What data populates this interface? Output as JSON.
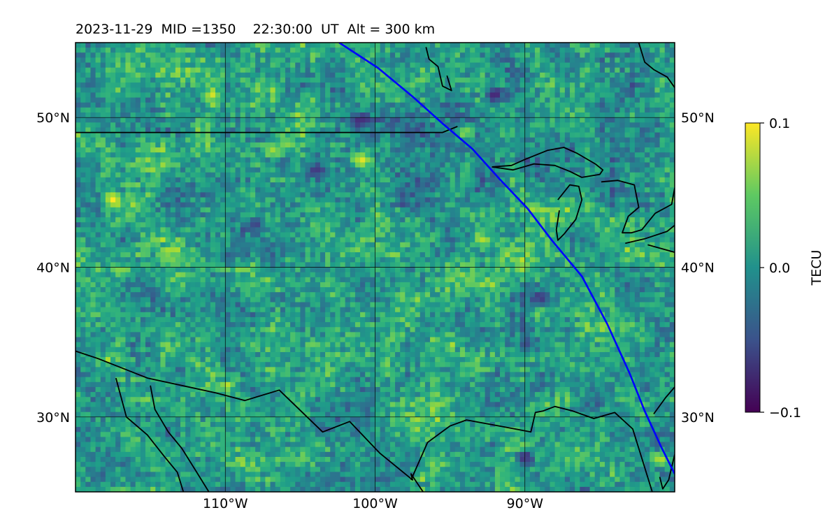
{
  "chart_data": {
    "type": "heatmap",
    "title": "2023-11-29  MID =1350    22:30:00  UT  Alt = 300 km",
    "xlim": [
      -120,
      -80
    ],
    "ylim": [
      25,
      55
    ],
    "x_ticks": [
      -110,
      -100,
      -90
    ],
    "x_tick_labels": [
      "110°W",
      "100°W",
      "90°W"
    ],
    "y_ticks": [
      30,
      40,
      50
    ],
    "y_tick_labels": [
      "30°N",
      "40°N",
      "50°N"
    ],
    "grid": true,
    "colormap": "viridis",
    "colorbar": {
      "label": "TECU",
      "range": [
        -0.1,
        0.1
      ],
      "ticks": [
        0.1,
        0.0,
        -0.1
      ],
      "tick_labels": [
        "0.1",
        "0.0",
        "−0.1"
      ]
    },
    "grid_resolution": {
      "lon_cells": 120,
      "lat_cells": 90
    },
    "hotspots": [
      {
        "lon": -117.5,
        "lat": 44.5,
        "value": 0.1
      },
      {
        "lon": -110.9,
        "lat": 51.5,
        "value": 0.09
      },
      {
        "lon": -100.9,
        "lat": 47.2,
        "value": 0.1
      },
      {
        "lon": -92.9,
        "lat": 41.8,
        "value": 0.08
      },
      {
        "lon": -106.9,
        "lat": 47.9,
        "value": 0.08
      },
      {
        "lon": -81.0,
        "lat": 27.2,
        "value": 0.09
      },
      {
        "lon": -113.5,
        "lat": 40.5,
        "value": 0.06
      },
      {
        "lon": -94.0,
        "lat": 49.0,
        "value": 0.08
      }
    ],
    "coldspots": [
      {
        "lon": -101.0,
        "lat": 49.8,
        "value": -0.09
      },
      {
        "lon": -92.0,
        "lat": 51.5,
        "value": -0.09
      },
      {
        "lon": -90.0,
        "lat": 27.3,
        "value": -0.09
      },
      {
        "lon": -89.0,
        "lat": 38.0,
        "value": -0.08
      },
      {
        "lon": -108.0,
        "lat": 42.8,
        "value": -0.07
      },
      {
        "lon": -104.0,
        "lat": 46.5,
        "value": -0.08
      }
    ],
    "terminator_line": {
      "color": "#0000ff",
      "lon": [
        -102.4,
        -99.8,
        -97.5,
        -95.5,
        -93.5,
        -91.7,
        -89.8,
        -88.2,
        -86.2,
        -84.5,
        -83.0,
        -82.0,
        -80.9,
        -80.0
      ],
      "lat": [
        55.0,
        53.3,
        51.4,
        49.6,
        47.9,
        45.9,
        43.9,
        41.8,
        39.4,
        36.2,
        32.9,
        30.4,
        28.0,
        26.2
      ]
    },
    "coastlines": {
      "color": "#000000",
      "polylines": [
        {
          "lon": [
            -120,
            -95.5,
            -94.5
          ],
          "lat": [
            49.0,
            49.0,
            49.4
          ]
        },
        {
          "lon": [
            -120,
            -118.5,
            -115.2,
            -110.6,
            -108.7,
            -106.4,
            -103.5,
            -101.7,
            -99.7,
            -97.5,
            -97.6,
            -96.8
          ],
          "lat": [
            34.4,
            33.9,
            32.6,
            31.6,
            31.1,
            31.8,
            29.0,
            29.7,
            27.6,
            25.8,
            26.2,
            25.0
          ]
        },
        {
          "lon": [
            -117.3,
            -116.6,
            -115.2,
            -114.1,
            -113.2,
            -112.8
          ],
          "lat": [
            32.6,
            30.0,
            28.8,
            27.4,
            26.3,
            25.0
          ]
        },
        {
          "lon": [
            -115.0,
            -114.7,
            -113.8,
            -112.9,
            -111.9,
            -111.1
          ],
          "lat": [
            32.1,
            30.5,
            29.0,
            27.9,
            26.3,
            25.0
          ]
        },
        {
          "lon": [
            -97.6,
            -96.5,
            -95.0,
            -93.9,
            -91.2,
            -89.6,
            -89.3,
            -88.8,
            -88.0,
            -86.8,
            -85.4,
            -84.0,
            -82.8,
            -81.5
          ],
          "lat": [
            25.8,
            28.3,
            29.4,
            29.8,
            29.3,
            29.0,
            30.3,
            30.4,
            30.7,
            30.4,
            29.9,
            30.3,
            29.2,
            25.0
          ]
        },
        {
          "lon": [
            -81.4,
            -80.6,
            -80.0
          ],
          "lat": [
            30.2,
            31.3,
            32.0
          ]
        },
        {
          "lon": [
            -81.0,
            -80.8,
            -80.4,
            -80.0
          ],
          "lat": [
            26.0,
            25.2,
            25.8,
            27.5
          ]
        },
        {
          "lon": [
            -92.2,
            -90.9,
            -90.0,
            -88.5,
            -87.4,
            -86.5,
            -85.3,
            -84.8,
            -85.0,
            -86.2,
            -87.0,
            -88.0,
            -89.4,
            -90.8,
            -92.2
          ],
          "lat": [
            46.7,
            46.8,
            47.2,
            47.8,
            48.0,
            47.6,
            46.9,
            46.5,
            46.2,
            46.0,
            46.4,
            46.8,
            46.9,
            46.5,
            46.7
          ]
        },
        {
          "lon": [
            -87.8,
            -87.0,
            -86.4,
            -86.2,
            -86.6,
            -87.4,
            -87.8,
            -87.9,
            -87.7
          ],
          "lat": [
            44.5,
            45.5,
            45.4,
            44.5,
            43.2,
            42.2,
            41.8,
            42.5,
            43.8
          ]
        },
        {
          "lon": [
            -84.9,
            -83.8,
            -82.7,
            -82.4,
            -83.1,
            -83.5,
            -82.9,
            -82.2,
            -81.3,
            -80.2,
            -80.0
          ],
          "lat": [
            45.7,
            45.8,
            45.5,
            44.0,
            43.4,
            42.3,
            42.3,
            42.5,
            43.6,
            44.2,
            45.3
          ]
        },
        {
          "lon": [
            -83.3,
            -82.0,
            -80.5,
            -80.0
          ],
          "lat": [
            41.6,
            41.9,
            42.4,
            42.8
          ]
        },
        {
          "lon": [
            -81.8,
            -80.0
          ],
          "lat": [
            41.5,
            41.0
          ]
        },
        {
          "lon": [
            -96.6,
            -96.4,
            -95.8,
            -95.5,
            -94.9,
            -95.2
          ],
          "lat": [
            54.7,
            53.9,
            53.4,
            52.1,
            51.8,
            52.8
          ]
        },
        {
          "lon": [
            -82.4,
            -82.0,
            -81.4,
            -80.5,
            -80.0
          ],
          "lat": [
            55.0,
            53.7,
            53.2,
            52.7,
            52.0
          ]
        }
      ]
    }
  }
}
